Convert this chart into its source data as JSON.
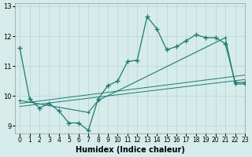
{
  "xlabel": "Humidex (Indice chaleur)",
  "xlim": [
    -0.5,
    23
  ],
  "ylim": [
    8.75,
    13.1
  ],
  "yticks": [
    9,
    10,
    11,
    12,
    13
  ],
  "xticks": [
    0,
    1,
    2,
    3,
    4,
    5,
    6,
    7,
    8,
    9,
    10,
    11,
    12,
    13,
    14,
    15,
    16,
    17,
    18,
    19,
    20,
    21,
    22,
    23
  ],
  "bg_color": "#d5ecea",
  "grid_color": "#b8d5d3",
  "line_color": "#1e7a70",
  "line1_x": [
    0,
    1,
    2,
    3,
    4,
    5,
    6,
    7,
    8,
    9,
    10,
    11,
    12,
    13,
    14,
    15,
    16,
    17,
    18,
    19,
    20,
    21,
    22,
    23
  ],
  "line1_y": [
    11.6,
    9.9,
    9.6,
    9.75,
    9.5,
    9.1,
    9.1,
    8.85,
    9.9,
    10.35,
    10.5,
    11.15,
    11.2,
    12.65,
    12.25,
    11.55,
    11.65,
    11.85,
    12.05,
    11.95,
    11.95,
    11.75,
    10.45,
    10.45
  ],
  "line2_x": [
    0,
    7,
    8,
    21,
    22,
    23
  ],
  "line2_y": [
    9.85,
    9.45,
    9.85,
    11.95,
    10.4,
    10.4
  ],
  "line3_x": [
    0,
    23
  ],
  "line3_y": [
    9.75,
    10.7
  ],
  "line4_x": [
    0,
    23
  ],
  "line4_y": [
    9.65,
    10.55
  ]
}
